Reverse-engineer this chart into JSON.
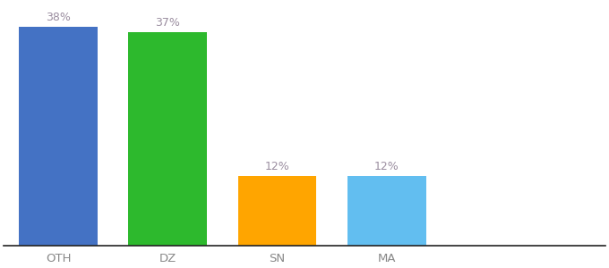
{
  "categories": [
    "OTH",
    "DZ",
    "SN",
    "MA"
  ],
  "values": [
    38,
    37,
    12,
    12
  ],
  "bar_colors": [
    "#4472c4",
    "#2db92d",
    "#ffa500",
    "#62bef0"
  ],
  "label_color": "#9b8ea0",
  "ylim": [
    0,
    42
  ],
  "bar_width": 0.72,
  "x_positions": [
    0.5,
    1.5,
    2.5,
    3.5
  ],
  "xlim": [
    0.0,
    5.5
  ],
  "background_color": "#ffffff",
  "label_fontsize": 9,
  "tick_fontsize": 9.5,
  "tick_color": "#888888",
  "bottom_spine_color": "#222222",
  "bottom_spine_linewidth": 1.2
}
